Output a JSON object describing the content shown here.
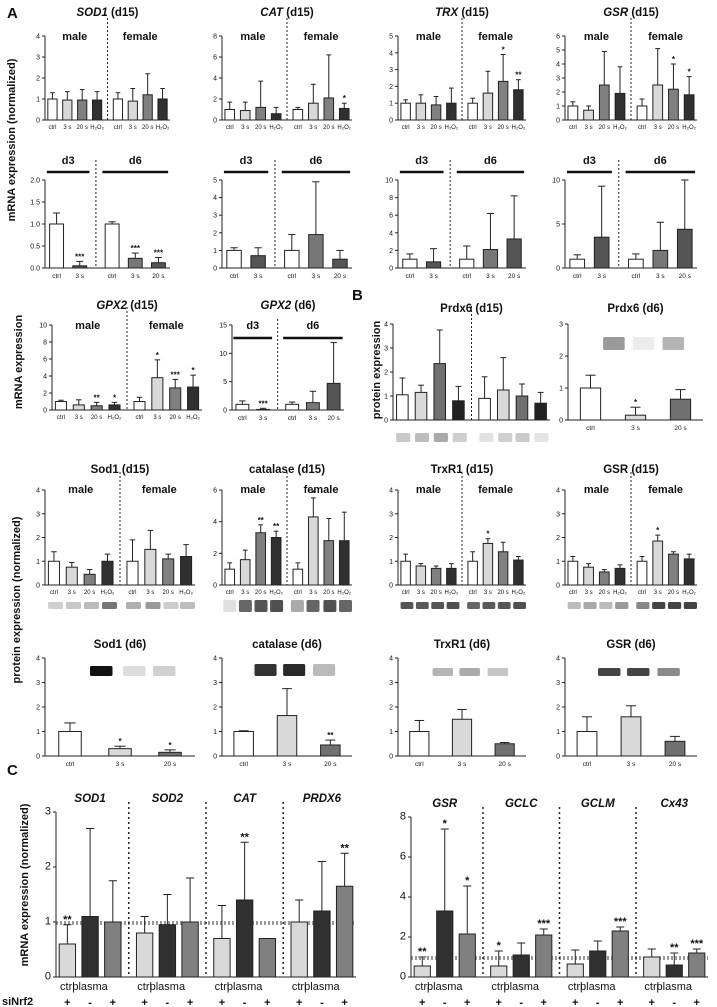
{
  "figure": {
    "panel_labels": [
      "A",
      "B",
      "C"
    ],
    "axis_titles": {
      "a_mrna": "mRNA expression (normalized)",
      "a_gpx_mrna": "mRNA expression",
      "b_protein": "protein expression",
      "protein_norm": "protein expression (normalized)",
      "c_mrna": "mRNA expression (normalized)"
    },
    "group_labels": {
      "male": "male",
      "female": "female",
      "d3": "d3",
      "d6": "d6"
    },
    "sirna_label": "siNrf2"
  },
  "chart_data": [
    {
      "id": "sod1_d15",
      "type": "bar",
      "title": "SOD1",
      "title_italic": true,
      "suffix": "(d15)",
      "groups": [
        "male",
        "female"
      ],
      "ylim": [
        0,
        4
      ],
      "yticks": [
        0,
        1,
        2,
        3,
        4
      ],
      "categories": [
        "ctrl",
        "3 s",
        "20 s",
        "H₂O₂",
        "ctrl",
        "3 s",
        "20 s",
        "H₂O₂"
      ],
      "values": [
        1.0,
        0.95,
        0.95,
        0.95,
        1.0,
        0.9,
        1.2,
        1.0
      ],
      "errors": [
        0.3,
        0.4,
        0.5,
        0.4,
        0.3,
        0.6,
        1.0,
        0.5
      ],
      "sig": [
        "",
        "",
        "",
        "",
        "",
        "",
        "",
        ""
      ]
    },
    {
      "id": "cat_d15",
      "type": "bar",
      "title": "CAT",
      "title_italic": true,
      "suffix": "(d15)",
      "groups": [
        "male",
        "female"
      ],
      "ylim": [
        0,
        8
      ],
      "yticks": [
        0,
        2,
        4,
        6,
        8
      ],
      "categories": [
        "ctrl",
        "3 s",
        "20 s",
        "H₂O₂",
        "ctrl",
        "3 s",
        "20 s",
        "H₂O₂"
      ],
      "values": [
        1.0,
        0.9,
        1.2,
        0.6,
        1.0,
        1.6,
        2.1,
        1.1
      ],
      "errors": [
        0.7,
        0.8,
        2.5,
        0.6,
        0.2,
        1.8,
        4.1,
        0.5
      ],
      "sig": [
        "",
        "",
        "",
        "",
        "",
        "",
        "",
        "*"
      ]
    },
    {
      "id": "trx_d15",
      "type": "bar",
      "title": "TRX",
      "title_italic": true,
      "suffix": "(d15)",
      "groups": [
        "male",
        "female"
      ],
      "ylim": [
        0,
        5
      ],
      "yticks": [
        0,
        1,
        2,
        3,
        4,
        5
      ],
      "categories": [
        "ctrl",
        "3 s",
        "20 s",
        "H₂O₂",
        "ctrl",
        "3 s",
        "20 s",
        "H₂O₂"
      ],
      "values": [
        1.0,
        1.0,
        0.9,
        1.0,
        1.0,
        1.6,
        2.3,
        1.8
      ],
      "errors": [
        0.2,
        0.5,
        0.5,
        0.9,
        0.3,
        1.3,
        1.6,
        0.6
      ],
      "sig": [
        "",
        "",
        "",
        "",
        "",
        "",
        "*",
        "**"
      ]
    },
    {
      "id": "gsr_d15",
      "type": "bar",
      "title": "GSR",
      "title_italic": true,
      "suffix": "(d15)",
      "groups": [
        "male",
        "female"
      ],
      "ylim": [
        0,
        6
      ],
      "yticks": [
        0,
        1,
        2,
        3,
        4,
        5,
        6
      ],
      "categories": [
        "ctrl",
        "3 s",
        "20 s",
        "H₂O₂",
        "ctrl",
        "3 s",
        "20 s",
        "H₂O₂"
      ],
      "values": [
        1.0,
        0.7,
        2.5,
        1.9,
        1.0,
        2.5,
        2.2,
        1.8
      ],
      "errors": [
        0.3,
        0.3,
        2.4,
        1.9,
        0.5,
        2.6,
        1.8,
        1.3
      ],
      "sig": [
        "",
        "",
        "",
        "",
        "",
        "",
        "*",
        "*"
      ]
    },
    {
      "id": "sod1_d36",
      "type": "bar",
      "groups": [
        "d3",
        "d6"
      ],
      "ylim": [
        0,
        2
      ],
      "yticks": [
        0.0,
        0.5,
        1.0,
        1.5,
        2.0
      ],
      "tickfmt": 1,
      "categories": [
        "ctrl",
        "3 s",
        "ctrl",
        "3 s",
        "20 s"
      ],
      "values": [
        1.0,
        0.05,
        1.0,
        0.22,
        0.12
      ],
      "errors": [
        0.25,
        0.1,
        0.05,
        0.12,
        0.12
      ],
      "sig": [
        "",
        "***",
        "",
        "***",
        "***"
      ]
    },
    {
      "id": "cat_d36",
      "type": "bar",
      "groups": [
        "d3",
        "d6"
      ],
      "ylim": [
        0,
        5
      ],
      "yticks": [
        0,
        1,
        2,
        3,
        4,
        5
      ],
      "categories": [
        "ctrl",
        "3 s",
        "ctrl",
        "3 s",
        "20 s"
      ],
      "values": [
        1.0,
        0.7,
        1.0,
        1.9,
        0.5
      ],
      "errors": [
        0.15,
        0.45,
        0.9,
        3.0,
        0.5
      ],
      "sig": [
        "",
        "",
        "",
        "",
        ""
      ]
    },
    {
      "id": "trx_d36",
      "type": "bar",
      "groups": [
        "d3",
        "d6"
      ],
      "ylim": [
        0,
        10
      ],
      "yticks": [
        0,
        2,
        4,
        6,
        8,
        10
      ],
      "categories": [
        "ctrl",
        "3 s",
        "ctrl",
        "3 s",
        "20 s"
      ],
      "values": [
        1.0,
        0.7,
        1.0,
        2.1,
        3.3
      ],
      "errors": [
        0.6,
        1.5,
        1.5,
        4.1,
        4.9
      ],
      "sig": [
        "",
        "",
        "",
        "",
        ""
      ]
    },
    {
      "id": "gsr_d36",
      "type": "bar",
      "groups": [
        "d3",
        "d6"
      ],
      "ylim": [
        0,
        10
      ],
      "yticks": [
        0,
        5,
        10
      ],
      "categories": [
        "ctrl",
        "3 s",
        "ctrl",
        "3 s",
        "20 s"
      ],
      "values": [
        1.0,
        3.5,
        1.0,
        2.0,
        4.4
      ],
      "errors": [
        0.5,
        5.8,
        0.6,
        3.2,
        7.0
      ],
      "sig": [
        "",
        "",
        "",
        "",
        ""
      ]
    },
    {
      "id": "gpx2_d15",
      "type": "bar",
      "title": "GPX2",
      "title_italic": true,
      "suffix": "(d15)",
      "groups": [
        "male",
        "female"
      ],
      "ylim": [
        0,
        10
      ],
      "yticks": [
        0,
        2,
        4,
        6,
        8,
        10
      ],
      "categories": [
        "ctrl",
        "3 s",
        "20 s",
        "H₂O₂",
        "ctrl",
        "3 s",
        "20 s",
        "H₂O₂"
      ],
      "values": [
        1.0,
        0.6,
        0.5,
        0.6,
        1.0,
        3.8,
        2.6,
        2.7
      ],
      "errors": [
        0.15,
        0.6,
        0.4,
        0.3,
        0.5,
        2.1,
        1.0,
        1.4
      ],
      "sig": [
        "",
        "",
        "**",
        "*",
        "",
        "*",
        "***",
        "*"
      ]
    },
    {
      "id": "gpx2_d6",
      "type": "bar",
      "title": "GPX2",
      "title_italic": true,
      "suffix": "(d6)",
      "groups": [
        "d3",
        "d6"
      ],
      "ylim": [
        0,
        15
      ],
      "yticks": [
        0,
        5,
        10,
        15
      ],
      "categories": [
        "ctrl",
        "3 s",
        "ctrl",
        "3 s",
        "20 s"
      ],
      "values": [
        1.0,
        0.1,
        1.0,
        1.3,
        4.7
      ],
      "errors": [
        0.6,
        0.2,
        0.4,
        2.0,
        7.2
      ],
      "sig": [
        "",
        "***",
        "",
        "",
        ""
      ]
    },
    {
      "id": "prdx6_d15",
      "type": "bar",
      "title": "Prdx6",
      "suffix": "(d15)",
      "ylim": [
        0,
        4
      ],
      "yticks": [
        0,
        1,
        2,
        3,
        4
      ],
      "categories": [
        "",
        "",
        "",
        "",
        "",
        "",
        "",
        ""
      ],
      "values": [
        1.05,
        1.15,
        2.35,
        0.8,
        0.9,
        1.25,
        1.0,
        0.7
      ],
      "errors": [
        0.7,
        0.3,
        1.4,
        0.6,
        0.9,
        1.35,
        0.5,
        0.45
      ],
      "sig": [
        "",
        "",
        "",
        "",
        "",
        "",
        "",
        ""
      ]
    },
    {
      "id": "prdx6_d6",
      "type": "bar",
      "title": "Prdx6",
      "suffix": "(d6)",
      "ylim": [
        0,
        3
      ],
      "yticks": [
        0,
        1,
        2,
        3
      ],
      "categories": [
        "ctrl",
        "3 s",
        "20 s"
      ],
      "values": [
        1.0,
        0.15,
        0.65
      ],
      "errors": [
        0.4,
        0.25,
        0.3
      ],
      "sig": [
        "",
        "*",
        ""
      ]
    },
    {
      "id": "sod1p_d15",
      "type": "bar",
      "title": "Sod1",
      "suffix": "(d15)",
      "groups": [
        "male",
        "female"
      ],
      "ylim": [
        0,
        4
      ],
      "yticks": [
        0,
        1,
        2,
        3,
        4
      ],
      "categories": [
        "ctrl",
        "3 s",
        "20 s",
        "H₂O₂",
        "ctrl",
        "3 s",
        "20 s",
        "H₂O₂"
      ],
      "values": [
        1.0,
        0.75,
        0.45,
        1.0,
        1.0,
        1.5,
        1.1,
        1.2
      ],
      "errors": [
        0.4,
        0.2,
        0.2,
        0.3,
        0.9,
        0.8,
        0.2,
        0.5
      ],
      "sig": [
        "",
        "",
        "",
        "",
        "",
        "",
        "",
        ""
      ]
    },
    {
      "id": "catp_d15",
      "type": "bar",
      "title": "catalase",
      "suffix": "(d15)",
      "groups": [
        "male",
        "female"
      ],
      "ylim": [
        0,
        6
      ],
      "yticks": [
        0,
        2,
        4,
        6
      ],
      "categories": [
        "ctrl",
        "3 s",
        "20 s",
        "H₂O₂",
        "ctrl",
        "3 s",
        "20 s",
        "H₂O₂"
      ],
      "values": [
        1.0,
        1.6,
        3.3,
        3.0,
        1.0,
        4.3,
        2.8,
        2.8
      ],
      "errors": [
        0.4,
        0.6,
        0.5,
        0.4,
        0.4,
        1.2,
        1.4,
        1.8
      ],
      "sig": [
        "",
        "",
        "**",
        "**",
        "",
        "*",
        "",
        ""
      ]
    },
    {
      "id": "trxr1_d15",
      "type": "bar",
      "title": "TrxR1",
      "suffix": "(d15)",
      "groups": [
        "male",
        "female"
      ],
      "ylim": [
        0,
        4
      ],
      "yticks": [
        0,
        1,
        2,
        3,
        4
      ],
      "categories": [
        "ctrl",
        "3 s",
        "20 s",
        "H₂O₂",
        "ctrl",
        "3 s",
        "20 s",
        "H₂O₂"
      ],
      "values": [
        1.0,
        0.8,
        0.7,
        0.7,
        1.0,
        1.75,
        1.4,
        1.05
      ],
      "errors": [
        0.3,
        0.1,
        0.1,
        0.2,
        0.4,
        0.2,
        0.4,
        0.15
      ],
      "sig": [
        "",
        "",
        "",
        "",
        "",
        "*",
        "",
        ""
      ]
    },
    {
      "id": "gsrp_d15",
      "type": "bar",
      "title": "GSR",
      "suffix": "(d15)",
      "groups": [
        "male",
        "female"
      ],
      "ylim": [
        0,
        4
      ],
      "yticks": [
        0,
        1,
        2,
        3,
        4
      ],
      "categories": [
        "ctrl",
        "3 s",
        "20 s",
        "H₂O₂",
        "ctrl",
        "3 s",
        "20 s",
        "H₂O₂"
      ],
      "values": [
        1.0,
        0.75,
        0.55,
        0.7,
        1.0,
        1.85,
        1.3,
        1.1
      ],
      "errors": [
        0.2,
        0.15,
        0.1,
        0.15,
        0.2,
        0.25,
        0.1,
        0.2
      ],
      "sig": [
        "",
        "",
        "",
        "",
        "",
        "*",
        "",
        ""
      ]
    },
    {
      "id": "sod1p_d6",
      "type": "bar",
      "title": "Sod1",
      "suffix": "(d6)",
      "ylim": [
        0,
        4
      ],
      "yticks": [
        0,
        1,
        2,
        3,
        4
      ],
      "categories": [
        "ctrl",
        "3 s",
        "20 s"
      ],
      "values": [
        1.0,
        0.3,
        0.15
      ],
      "errors": [
        0.35,
        0.1,
        0.1
      ],
      "sig": [
        "",
        "*",
        "*"
      ]
    },
    {
      "id": "catp_d6",
      "type": "bar",
      "title": "catalase",
      "suffix": "(d6)",
      "ylim": [
        0,
        4
      ],
      "yticks": [
        0,
        1,
        2,
        3,
        4
      ],
      "categories": [
        "ctrl",
        "3 s",
        "20 s"
      ],
      "values": [
        1.0,
        1.65,
        0.45
      ],
      "errors": [
        0.03,
        1.1,
        0.2
      ],
      "sig": [
        "",
        "",
        "**"
      ]
    },
    {
      "id": "trxr1_d6",
      "type": "bar",
      "title": "TrxR1",
      "suffix": "(d6)",
      "ylim": [
        0,
        4
      ],
      "yticks": [
        0,
        1,
        2,
        3,
        4
      ],
      "categories": [
        "ctrl",
        "3 s",
        "20 s"
      ],
      "values": [
        1.0,
        1.5,
        0.5
      ],
      "errors": [
        0.45,
        0.4,
        0.05
      ],
      "sig": [
        "",
        "",
        ""
      ]
    },
    {
      "id": "gsrp_d6",
      "type": "bar",
      "title": "GSR",
      "suffix": "(d6)",
      "ylim": [
        0,
        4
      ],
      "yticks": [
        0,
        1,
        2,
        3,
        4
      ],
      "categories": [
        "ctrl",
        "3 s",
        "20 s"
      ],
      "values": [
        1.0,
        1.6,
        0.6
      ],
      "errors": [
        0.6,
        0.45,
        0.2
      ],
      "sig": [
        "",
        "",
        ""
      ]
    },
    {
      "id": "c_left",
      "type": "bar",
      "ylim": [
        0,
        3
      ],
      "yticks": [
        0,
        1,
        2,
        3
      ],
      "refline": 1.0,
      "genes": [
        "SOD1",
        "SOD2",
        "CAT",
        "PRDX6"
      ],
      "categories": [
        "ctrl",
        "plasma",
        "",
        "ctrl",
        "plasma",
        "",
        "ctrl",
        "plasma",
        "",
        "ctrl",
        "plasma",
        ""
      ],
      "sirna": [
        "+",
        "-",
        "+",
        "+",
        "-",
        "+",
        "+",
        "-",
        "+",
        "+",
        "-",
        "+"
      ],
      "values": [
        0.6,
        1.1,
        1.0,
        0.8,
        0.95,
        1.0,
        0.7,
        1.4,
        0.7,
        1.0,
        1.2,
        1.65
      ],
      "errors": [
        0.35,
        1.6,
        0.75,
        0.3,
        0.55,
        0.8,
        0.6,
        1.05,
        0.0,
        0.4,
        0.9,
        0.6
      ],
      "sig": [
        "**",
        "",
        "",
        "",
        "",
        "",
        "",
        "**",
        "",
        "",
        "",
        "**"
      ]
    },
    {
      "id": "c_right",
      "type": "bar",
      "ylim": [
        0,
        8
      ],
      "yticks": [
        0,
        2,
        4,
        6,
        8
      ],
      "refline": 1.0,
      "genes": [
        "GSR",
        "GCLC",
        "GCLM",
        "Cx43"
      ],
      "categories": [
        "ctrl",
        "plasma",
        "",
        "ctrl",
        "plasma",
        "",
        "ctrl",
        "plasma",
        "",
        "ctrl",
        "plasma",
        ""
      ],
      "sirna": [
        "+",
        "-",
        "+",
        "+",
        "-",
        "+",
        "+",
        "-",
        "+",
        "+",
        "-",
        "+"
      ],
      "values": [
        0.55,
        3.3,
        2.15,
        0.55,
        1.1,
        2.1,
        0.65,
        1.3,
        2.3,
        1.0,
        0.6,
        1.2
      ],
      "errors": [
        0.45,
        4.1,
        2.4,
        0.75,
        0.6,
        0.3,
        0.7,
        0.5,
        0.2,
        0.4,
        0.6,
        0.2
      ],
      "sig": [
        "**",
        "*",
        "*",
        "*",
        "",
        "***",
        "",
        "",
        "***",
        "",
        "**",
        "***"
      ]
    }
  ]
}
